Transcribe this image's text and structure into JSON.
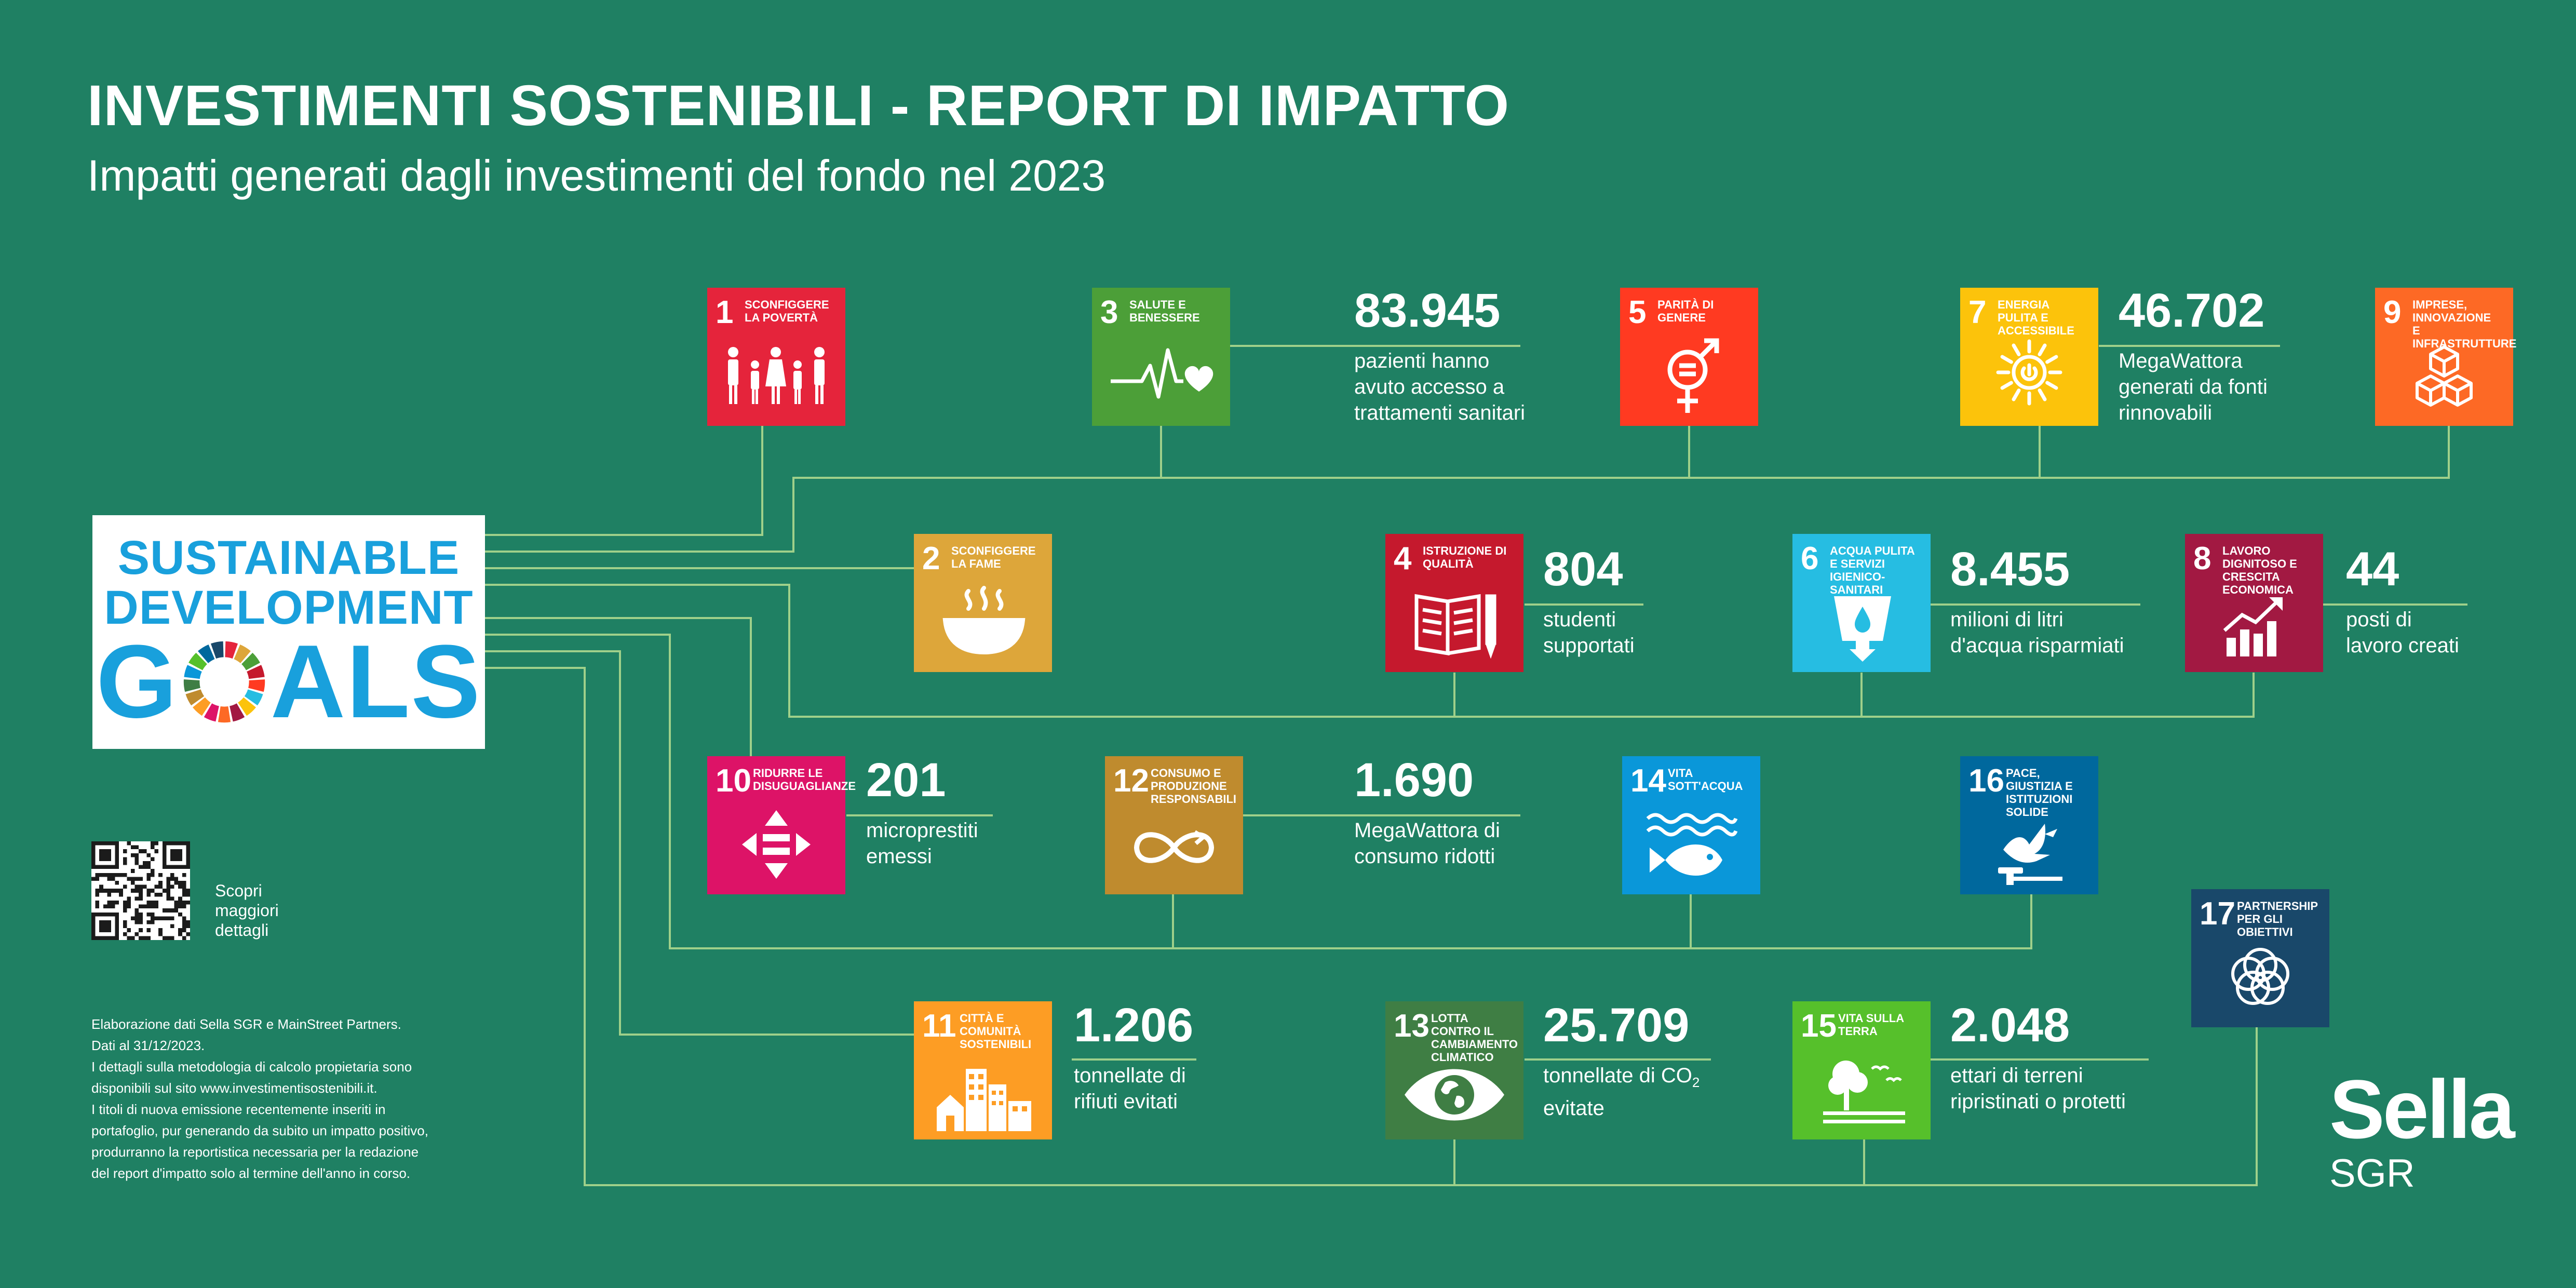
{
  "header": {
    "title": "INVESTIMENTI SOSTENIBILI - REPORT DI IMPATTO",
    "subtitle": "Impatti generati dagli investimenti del fondo nel 2023"
  },
  "sdg_logo": {
    "line1": "SUSTAINABLE",
    "line2": "DEVELOPMENT",
    "line3_start": "G",
    "line3_end": "ALS"
  },
  "goals": [
    {
      "num": "1",
      "name": "SCONFIGGERE LA POVERTÀ",
      "color": "#e5243b",
      "icon": "family-icon"
    },
    {
      "num": "2",
      "name": "SCONFIGGERE LA FAME",
      "color": "#dda63a",
      "icon": "bowl-icon"
    },
    {
      "num": "3",
      "name": "SALUTE E BENESSERE",
      "color": "#4c9f38",
      "icon": "heartbeat-icon"
    },
    {
      "num": "4",
      "name": "ISTRUZIONE DI QUALITÀ",
      "color": "#c5192d",
      "icon": "book-icon"
    },
    {
      "num": "5",
      "name": "PARITÀ DI GENERE",
      "color": "#ff3a21",
      "icon": "gender-icon"
    },
    {
      "num": "6",
      "name": "ACQUA PULITA E SERVIZI IGIENICO-SANITARI",
      "color": "#26bde2",
      "icon": "water-icon"
    },
    {
      "num": "7",
      "name": "ENERGIA PULITA E ACCESSIBILE",
      "color": "#fcc30b",
      "icon": "sun-power-icon"
    },
    {
      "num": "8",
      "name": "LAVORO DIGNITOSO E CRESCITA ECONOMICA",
      "color": "#a21942",
      "icon": "growth-chart-icon"
    },
    {
      "num": "9",
      "name": "IMPRESE, INNOVAZIONE E INFRASTRUTTURE",
      "color": "#fd6925",
      "icon": "cubes-icon"
    },
    {
      "num": "10",
      "name": "RIDURRE LE DISUGUAGLIANZE",
      "color": "#dd1367",
      "icon": "equality-icon"
    },
    {
      "num": "11",
      "name": "CITTÀ E COMUNITÀ SOSTENIBILI",
      "color": "#fd9d24",
      "icon": "city-icon"
    },
    {
      "num": "12",
      "name": "CONSUMO E PRODUZIONE RESPONSABILI",
      "color": "#bf8b2e",
      "icon": "infinity-icon"
    },
    {
      "num": "13",
      "name": "LOTTA CONTRO IL CAMBIAMENTO CLIMATICO",
      "color": "#3f7e44",
      "icon": "eye-globe-icon"
    },
    {
      "num": "14",
      "name": "VITA SOTT'ACQUA",
      "color": "#0a97d9",
      "icon": "fish-icon"
    },
    {
      "num": "15",
      "name": "VITA SULLA TERRA",
      "color": "#56c02b",
      "icon": "tree-icon"
    },
    {
      "num": "16",
      "name": "PACE, GIUSTIZIA E ISTITUZIONI SOLIDE",
      "color": "#00689d",
      "icon": "dove-icon"
    },
    {
      "num": "17",
      "name": "PARTNERSHIP PER GLI OBIETTIVI",
      "color": "#19486a",
      "icon": "rings-icon"
    }
  ],
  "stats": [
    {
      "goal": "3",
      "value": "83.945",
      "desc": "pazienti hanno\navuto accesso a\ntrattamenti sanitari"
    },
    {
      "goal": "7",
      "value": "46.702",
      "desc": "MegaWattora\ngenerati da fonti\nrinnovabili"
    },
    {
      "goal": "4",
      "value": "804",
      "desc": "studenti\nsupportati"
    },
    {
      "goal": "6",
      "value": "8.455",
      "desc": "milioni di litri\nd'acqua risparmiati"
    },
    {
      "goal": "8",
      "value": "44",
      "desc": "posti di\nlavoro creati"
    },
    {
      "goal": "10",
      "value": "201",
      "desc": "microprestiti\nemessi"
    },
    {
      "goal": "12",
      "value": "1.690",
      "desc": "MegaWattora di\nconsumo ridotti"
    },
    {
      "goal": "11",
      "value": "1.206",
      "desc": "tonnellate di\nrifiuti evitati"
    },
    {
      "goal": "13",
      "value": "25.709",
      "desc_main": "tonnellate di CO",
      "desc_sub": "2",
      "desc_line2": "evitate"
    },
    {
      "goal": "15",
      "value": "2.048",
      "desc": "ettari di terreni\nripristinati o protetti"
    }
  ],
  "qr_label": "Scopri\nmaggiori\ndettagli",
  "footnote": "Elaborazione dati Sella SGR e MainStreet Partners.\nDati al 31/12/2023.\nI dettagli sulla metodologia di calcolo propietaria sono\ndisponibili sul sito www.investimentisostenibili.it.\nI titoli di nuova emissione recentemente inseriti in\nportafoglio, pur generando da subito un impatto positivo,\nprodurranno la reportistica necessaria per la redazione\ndel report d'impatto solo al termine dell'anno in corso.",
  "brand": {
    "name": "Sella",
    "sub": "SGR"
  },
  "colors": {
    "background": "#1f8063",
    "connector": "#9fd08a",
    "sdg_blue": "#19a0dc"
  }
}
